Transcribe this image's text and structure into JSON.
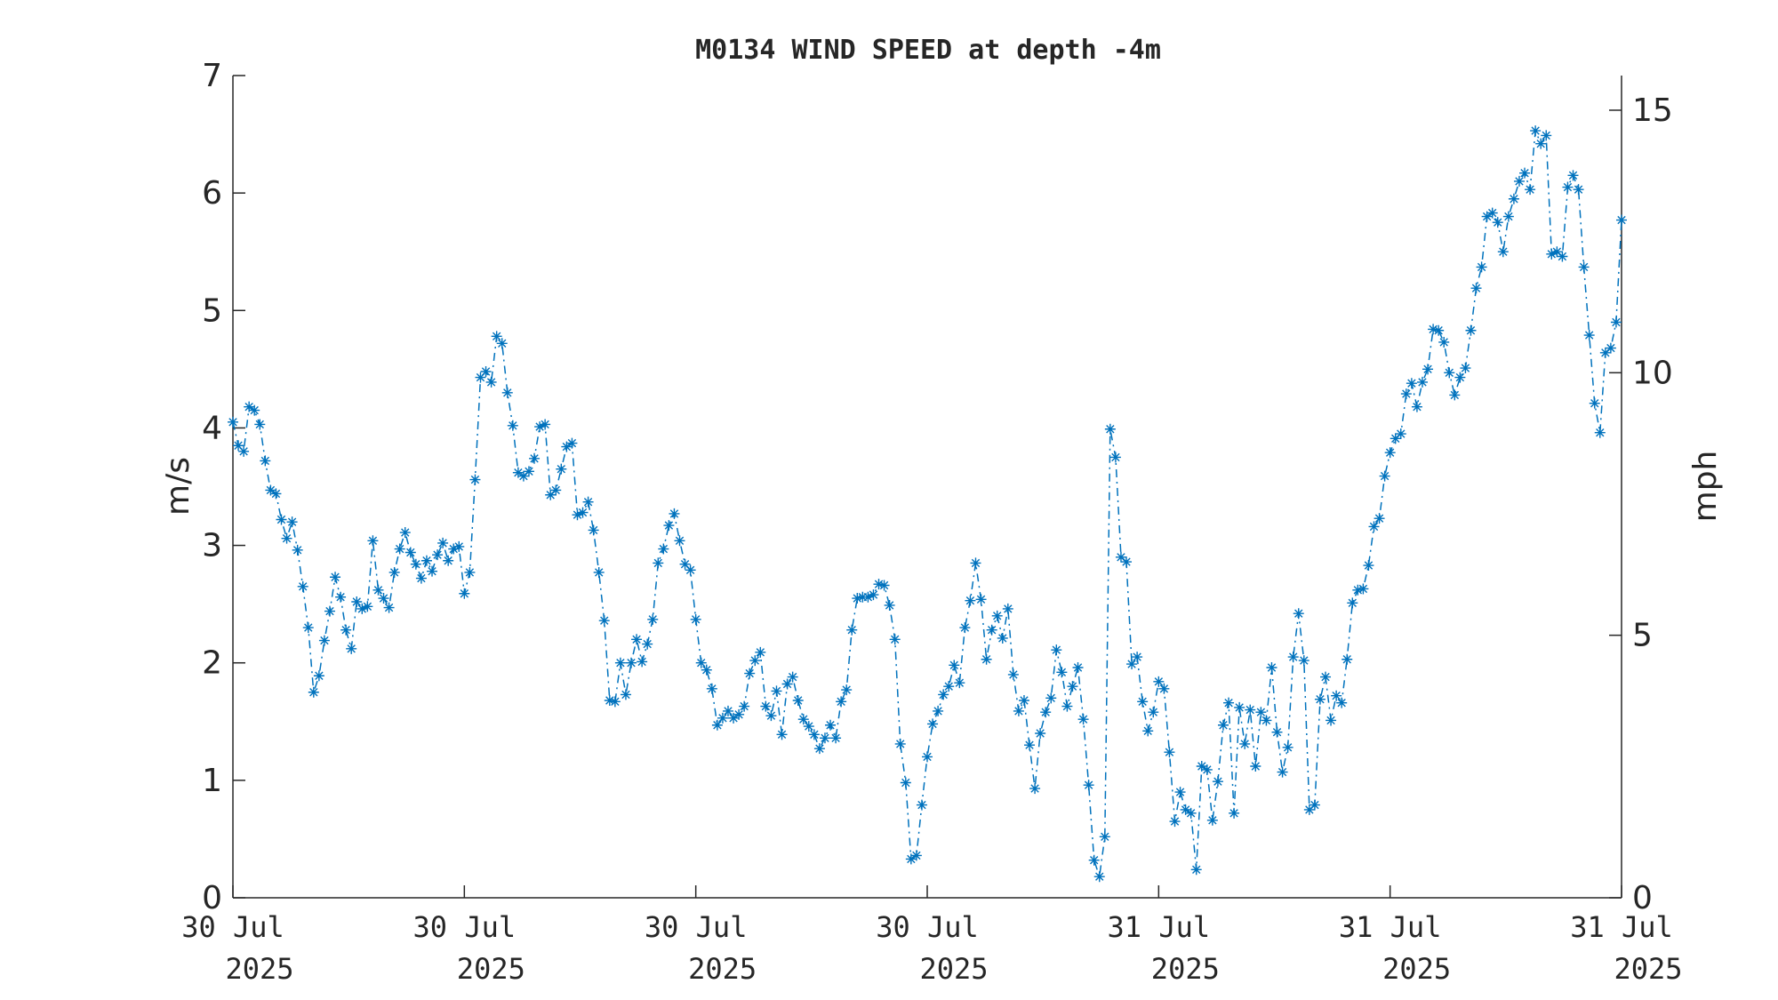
{
  "chart_data": {
    "type": "line",
    "title": "M0134 WIND SPEED at depth -4m",
    "ylabel": "m/s",
    "ylabel_right": "mph",
    "ylim": [
      0,
      7
    ],
    "yticks": [
      "0",
      "1",
      "2",
      "3",
      "4",
      "5",
      "6",
      "7"
    ],
    "ylim_right": [
      0,
      15.66
    ],
    "yticks_right": [
      {
        "value": 0,
        "label": "0"
      },
      {
        "value": 5,
        "label": "5"
      },
      {
        "value": 10,
        "label": "10"
      },
      {
        "value": 15,
        "label": "15"
      }
    ],
    "xticks": [
      {
        "line1": "30 Jul",
        "line2": "2025"
      },
      {
        "line1": "30 Jul",
        "line2": "2025"
      },
      {
        "line1": "30 Jul",
        "line2": "2025"
      },
      {
        "line1": "30 Jul",
        "line2": "2025"
      },
      {
        "line1": "31 Jul",
        "line2": "2025"
      },
      {
        "line1": "31 Jul",
        "line2": "2025"
      },
      {
        "line1": "31 Jul",
        "line2": "2025"
      }
    ],
    "grid": false,
    "series_color": "#0072BD",
    "series": [
      {
        "marker": "asterisk",
        "line_style": "dash-dot",
        "values": [
          4.05,
          3.85,
          3.8,
          4.18,
          4.15,
          4.03,
          3.72,
          3.47,
          3.44,
          3.22,
          3.06,
          3.2,
          2.96,
          2.65,
          2.3,
          1.75,
          1.89,
          2.19,
          2.44,
          2.73,
          2.56,
          2.28,
          2.12,
          2.52,
          2.46,
          2.48,
          3.04,
          2.62,
          2.55,
          2.47,
          2.77,
          2.97,
          3.11,
          2.94,
          2.84,
          2.72,
          2.87,
          2.78,
          2.92,
          3.02,
          2.87,
          2.97,
          2.99,
          2.59,
          2.77,
          3.56,
          4.43,
          4.48,
          4.39,
          4.78,
          4.72,
          4.3,
          4.02,
          3.62,
          3.59,
          3.63,
          3.74,
          4.01,
          4.03,
          3.43,
          3.47,
          3.65,
          3.84,
          3.87,
          3.26,
          3.28,
          3.37,
          3.13,
          2.77,
          2.36,
          1.68,
          1.67,
          2.0,
          1.73,
          2.0,
          2.2,
          2.01,
          2.16,
          2.37,
          2.85,
          2.97,
          3.17,
          3.27,
          3.04,
          2.84,
          2.79,
          2.37,
          2.0,
          1.94,
          1.78,
          1.47,
          1.53,
          1.59,
          1.53,
          1.56,
          1.63,
          1.91,
          2.02,
          2.09,
          1.63,
          1.55,
          1.76,
          1.39,
          1.82,
          1.88,
          1.68,
          1.52,
          1.46,
          1.39,
          1.27,
          1.36,
          1.47,
          1.36,
          1.67,
          1.77,
          2.28,
          2.55,
          2.56,
          2.56,
          2.58,
          2.67,
          2.66,
          2.49,
          2.2,
          1.31,
          0.98,
          0.33,
          0.36,
          0.79,
          1.2,
          1.48,
          1.59,
          1.73,
          1.8,
          1.98,
          1.83,
          2.3,
          2.53,
          2.85,
          2.54,
          2.03,
          2.28,
          2.4,
          2.21,
          2.46,
          1.9,
          1.59,
          1.68,
          1.3,
          0.93,
          1.4,
          1.58,
          1.7,
          2.11,
          1.92,
          1.63,
          1.8,
          1.96,
          1.52,
          0.96,
          0.32,
          0.18,
          0.52,
          3.99,
          3.75,
          2.9,
          2.86,
          1.99,
          2.05,
          1.67,
          1.42,
          1.58,
          1.84,
          1.78,
          1.24,
          0.65,
          0.9,
          0.75,
          0.72,
          0.24,
          1.12,
          1.09,
          0.66,
          0.99,
          1.47,
          1.66,
          0.72,
          1.62,
          1.31,
          1.6,
          1.12,
          1.58,
          1.51,
          1.96,
          1.41,
          1.07,
          1.28,
          2.05,
          2.42,
          2.02,
          0.75,
          0.79,
          1.69,
          1.88,
          1.51,
          1.72,
          1.66,
          2.03,
          2.51,
          2.62,
          2.63,
          2.83,
          3.16,
          3.23,
          3.59,
          3.79,
          3.91,
          3.95,
          4.29,
          4.38,
          4.18,
          4.39,
          4.5,
          4.84,
          4.83,
          4.73,
          4.47,
          4.28,
          4.43,
          4.51,
          4.83,
          5.19,
          5.37,
          5.8,
          5.83,
          5.75,
          5.5,
          5.8,
          5.95,
          6.1,
          6.17,
          6.03,
          6.53,
          6.42,
          6.49,
          5.48,
          5.5,
          5.46,
          6.05,
          6.15,
          6.03,
          5.37,
          4.79,
          4.21,
          3.96,
          4.64,
          4.68,
          4.9,
          5.77
        ]
      }
    ]
  }
}
